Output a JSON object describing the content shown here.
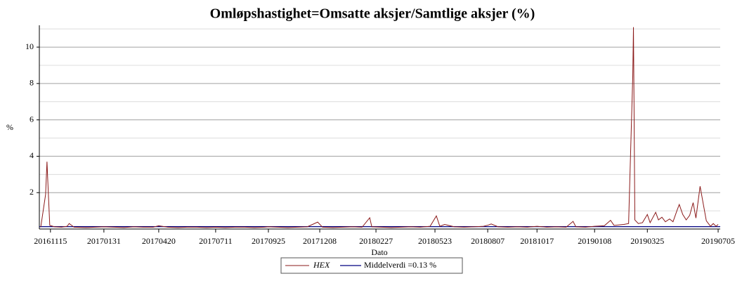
{
  "chart_data": {
    "type": "line",
    "title": "Omløpshastighet=Omsatte aksjer/Samtlige aksjer (%)",
    "xlabel": "Dato",
    "ylabel": "%",
    "x": [
      "20161101",
      "20161108",
      "20161110",
      "20161111",
      "20161114",
      "20161121",
      "20161201",
      "20161209",
      "20161212",
      "20161219",
      "20170105",
      "20170118",
      "20170131",
      "20170215",
      "20170301",
      "20170315",
      "20170329",
      "20170412",
      "20170420",
      "20170503",
      "20170517",
      "20170531",
      "20170614",
      "20170628",
      "20170711",
      "20170725",
      "20170808",
      "20170822",
      "20170905",
      "20170919",
      "20170925",
      "20171009",
      "20171023",
      "20171106",
      "20171120",
      "20171205",
      "20171212",
      "20171227",
      "20180110",
      "20180124",
      "20180207",
      "20180218",
      "20180221",
      "20180307",
      "20180321",
      "20180404",
      "20180418",
      "20180502",
      "20180516",
      "20180525",
      "20180530",
      "20180606",
      "20180620",
      "20180704",
      "20180718",
      "20180801",
      "20180808",
      "20180812",
      "20180822",
      "20180905",
      "20180919",
      "20181003",
      "20181017",
      "20181031",
      "20181114",
      "20181128",
      "20181208",
      "20181212",
      "20181226",
      "20190108",
      "20190122",
      "20190131",
      "20190205",
      "20190219",
      "20190226",
      "20190304",
      "20190305",
      "20190306",
      "20190307",
      "20190312",
      "20190318",
      "20190325",
      "20190329",
      "20190406",
      "20190410",
      "20190415",
      "20190420",
      "20190426",
      "20190501",
      "20190507",
      "20190510",
      "20190515",
      "20190520",
      "20190525",
      "20190530",
      "20190603",
      "20190609",
      "20190613",
      "20190618",
      "20190624",
      "20190628",
      "20190702",
      "20190705"
    ],
    "series": [
      {
        "name": "HEX",
        "color": "#8b1a1a",
        "values": [
          0.1,
          1.9,
          3.7,
          2.8,
          0.2,
          0.12,
          0.1,
          0.15,
          0.3,
          0.1,
          0.08,
          0.1,
          0.12,
          0.1,
          0.08,
          0.12,
          0.1,
          0.1,
          0.18,
          0.1,
          0.08,
          0.1,
          0.1,
          0.08,
          0.1,
          0.08,
          0.1,
          0.1,
          0.08,
          0.1,
          0.12,
          0.1,
          0.08,
          0.1,
          0.12,
          0.38,
          0.1,
          0.08,
          0.1,
          0.12,
          0.1,
          0.62,
          0.12,
          0.1,
          0.08,
          0.1,
          0.12,
          0.1,
          0.15,
          0.72,
          0.15,
          0.25,
          0.12,
          0.1,
          0.12,
          0.15,
          0.22,
          0.28,
          0.12,
          0.1,
          0.12,
          0.1,
          0.15,
          0.1,
          0.12,
          0.1,
          0.42,
          0.12,
          0.1,
          0.15,
          0.18,
          0.48,
          0.2,
          0.25,
          0.3,
          8.4,
          11.1,
          5.9,
          0.5,
          0.3,
          0.35,
          0.8,
          0.35,
          0.92,
          0.5,
          0.65,
          0.4,
          0.55,
          0.4,
          1.05,
          1.35,
          0.8,
          0.5,
          0.75,
          1.45,
          0.6,
          2.35,
          1.5,
          0.45,
          0.15,
          0.3,
          0.15,
          0.25
        ]
      }
    ],
    "mean_line": {
      "name": "Middelverdi =0.13 %",
      "value": 0.13,
      "color": "#000080"
    },
    "xlim": [
      "20161030",
      "20190708"
    ],
    "xticks": [
      "20161115",
      "20170131",
      "20170420",
      "20170711",
      "20170925",
      "20171208",
      "20180227",
      "20180523",
      "20180807",
      "20181017",
      "20190108",
      "20190325",
      "20190705"
    ],
    "ylim": [
      0,
      11.2
    ],
    "yticks": [
      2,
      4,
      6,
      8,
      10
    ],
    "minor_yticks": [
      1,
      3,
      5,
      7,
      9,
      11
    ],
    "grid": true
  }
}
